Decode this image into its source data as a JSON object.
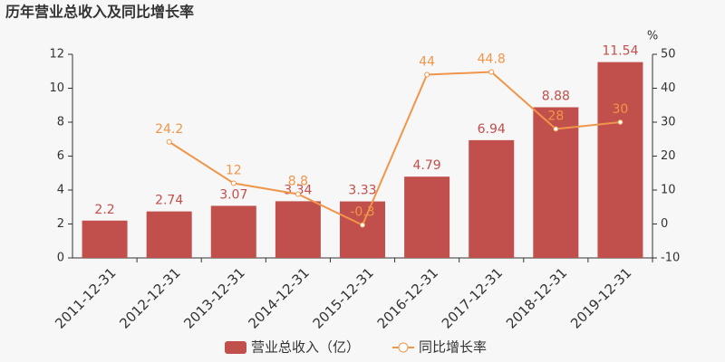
{
  "chart_data": {
    "type": "bar_line",
    "title": "历年营业总收入及同比增长率",
    "y2_label": "%",
    "categories": [
      "2011-12-31",
      "2012-12-31",
      "2013-12-31",
      "2014-12-31",
      "2015-12-31",
      "2016-12-31",
      "2017-12-31",
      "2018-12-31",
      "2019-12-31"
    ],
    "series": [
      {
        "name": "营业总收入（亿）",
        "type": "bar",
        "color": "#c14f4b",
        "values": [
          2.2,
          2.74,
          3.07,
          3.34,
          3.33,
          4.79,
          6.94,
          8.88,
          11.54
        ]
      },
      {
        "name": "同比增长率",
        "type": "line",
        "axis": "y2",
        "color": "#f0964a",
        "values": [
          null,
          24.2,
          12,
          8.8,
          -0.3,
          44,
          44.8,
          28,
          30
        ]
      }
    ],
    "ylim": [
      0,
      12
    ],
    "yticks": [
      0,
      2,
      4,
      6,
      8,
      10,
      12
    ],
    "y2lim": [
      -10,
      50
    ],
    "y2ticks": [
      -10,
      0,
      10,
      20,
      30,
      40,
      50
    ],
    "legend": "bottom"
  }
}
